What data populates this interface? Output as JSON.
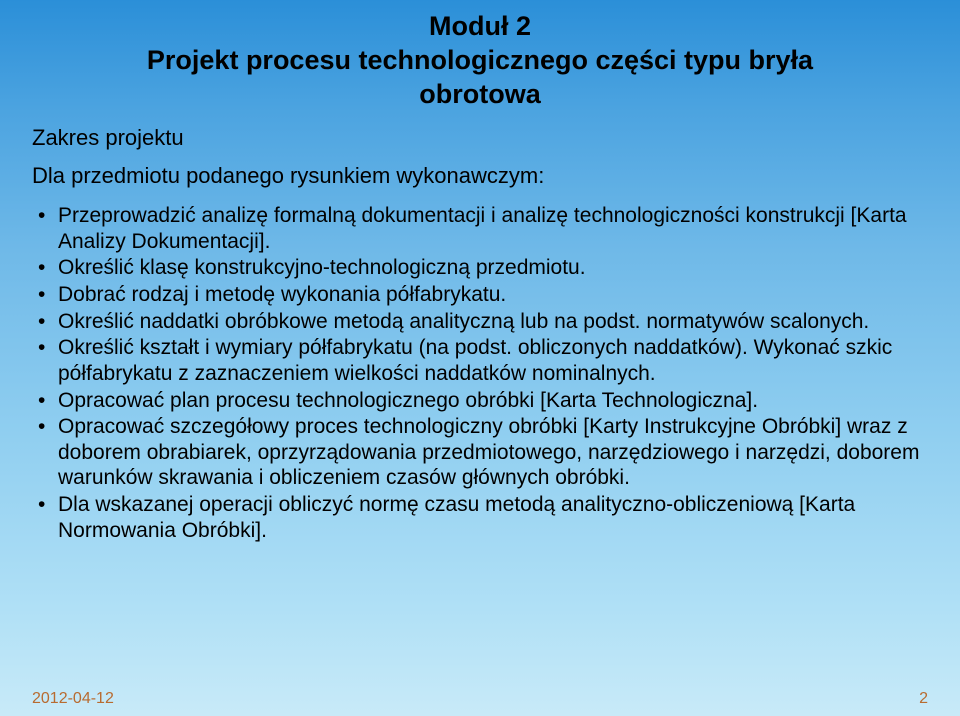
{
  "title": {
    "line1": "Moduł 2",
    "line2": "Projekt procesu technologicznego części typu bryła",
    "line3": "obrotowa"
  },
  "subhead": "Zakres projektu",
  "intro": "Dla przedmiotu podanego rysunkiem wykonawczym:",
  "bullets": [
    "Przeprowadzić analizę formalną dokumentacji i analizę technologiczności konstrukcji [Karta Analizy Dokumentacji].",
    "Określić klasę konstrukcyjno-technologiczną przedmiotu.",
    "Dobrać rodzaj i metodę wykonania półfabrykatu.",
    "Określić naddatki obróbkowe metodą analityczną lub na podst. normatywów scalonych.",
    "Określić kształt i wymiary półfabrykatu (na podst. obliczonych naddatków). Wykonać szkic półfabrykatu z zaznaczeniem wielkości naddatków nominalnych.",
    "Opracować plan procesu technologicznego obróbki  [Karta Technologiczna].",
    "Opracować szczegółowy proces technologiczny obróbki [Karty Instrukcyjne Obróbki] wraz  z doborem obrabiarek, oprzyrządowania przedmiotowego, narzędziowego i narzędzi, doborem warunków skrawania i obliczeniem czasów głównych obróbki.",
    "Dla wskazanej operacji obliczyć normę czasu metodą analityczno-obliczeniową [Karta Normowania Obróbki]."
  ],
  "footer": {
    "date": "2012-04-12",
    "page": "2"
  },
  "colors": {
    "text": "#000000",
    "footer": "#b86b30",
    "bg_top": "#2b8fd8",
    "bg_bottom": "#c8eaf8"
  }
}
